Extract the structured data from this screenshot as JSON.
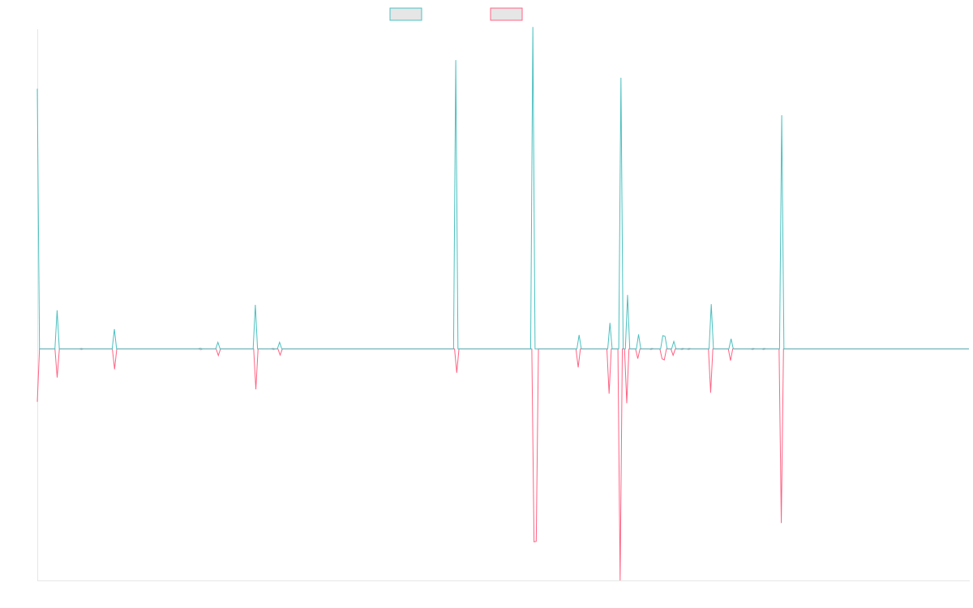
{
  "chart_data": {
    "type": "line",
    "title": "",
    "xlabel": "",
    "ylabel": "",
    "ylim": [
      -105,
      145
    ],
    "grid": false,
    "legend_placement": "top-center",
    "colors": {
      "series_a": "#4bc0c0",
      "series_b": "#ff6384",
      "swatch_fill": "#e6e6e6",
      "axis": "#e6e6e6"
    },
    "series": [
      {
        "values": [
          118,
          0,
          0,
          0,
          0,
          0,
          0,
          0,
          0,
          17.5,
          0,
          0,
          0,
          0,
          0,
          0,
          0,
          0,
          0,
          0,
          0.2,
          0,
          0,
          0,
          0,
          0,
          0,
          0,
          0,
          0,
          0,
          0,
          0,
          0,
          0,
          9,
          0,
          0,
          0,
          0,
          0,
          0,
          0,
          0,
          0,
          0,
          0,
          0,
          0,
          0,
          0,
          0,
          0,
          0,
          0,
          0,
          0,
          0,
          0,
          0,
          0,
          0,
          0,
          0,
          0,
          0,
          0,
          0,
          0,
          0,
          0,
          0,
          0,
          0,
          0.3,
          0,
          0,
          0,
          0,
          0,
          0,
          0,
          3,
          0,
          0,
          0,
          0,
          0,
          0,
          0,
          0,
          0,
          0,
          0,
          0,
          0,
          0,
          0,
          0,
          20,
          0,
          0,
          0,
          0,
          0,
          0,
          0,
          0.2,
          0,
          0,
          3,
          0,
          0,
          0,
          0,
          0,
          0,
          0,
          0,
          0,
          0,
          0,
          0,
          0,
          0,
          0,
          0,
          0,
          0,
          0,
          0,
          0,
          0,
          0,
          0,
          0,
          0,
          0,
          0,
          0,
          0,
          0,
          0,
          0,
          0,
          0,
          0,
          0,
          0,
          0,
          0,
          0,
          0,
          0,
          0,
          0,
          0,
          0,
          0,
          0,
          0,
          0,
          0,
          0,
          0,
          0,
          0,
          0,
          0,
          0,
          0,
          0,
          0,
          0,
          0,
          0,
          0,
          0,
          0,
          0,
          0,
          0,
          0,
          0,
          0,
          0,
          0,
          0,
          0,
          0,
          131,
          0,
          0,
          0,
          0,
          0,
          0,
          0,
          0,
          0,
          0,
          0,
          0,
          0,
          0,
          0,
          0,
          0,
          0,
          0,
          0,
          0,
          0,
          0,
          0,
          0,
          0,
          0,
          0,
          0,
          0,
          0,
          0,
          0,
          0,
          146,
          0,
          0,
          0,
          0,
          0,
          0,
          0,
          0,
          0,
          0,
          0,
          0,
          0,
          0,
          0,
          0,
          0,
          0,
          0,
          0,
          6.3,
          0,
          0,
          0,
          0,
          0,
          0,
          0,
          0,
          0,
          0,
          0,
          0,
          0,
          11.8,
          0,
          0,
          0,
          0,
          123,
          0,
          0,
          24.5,
          0,
          0,
          0,
          0,
          6.6,
          0,
          0,
          0,
          0,
          0,
          0.2,
          0,
          0,
          0,
          0,
          6,
          5.7,
          0,
          0,
          0,
          3.4,
          0,
          0,
          0,
          0.2,
          0,
          0,
          0.2,
          0,
          0,
          0,
          0,
          0,
          0,
          0,
          0,
          0,
          20.3,
          0,
          0,
          0,
          0,
          0,
          0,
          0,
          0,
          4.6,
          0,
          0,
          0,
          0,
          0,
          0,
          0,
          0,
          0,
          0.2,
          0,
          0,
          0,
          0,
          0.2,
          0,
          0,
          0,
          0,
          0,
          0,
          0,
          106,
          0,
          0,
          0,
          0,
          0,
          0,
          0,
          0,
          0,
          0,
          0,
          0,
          0,
          0,
          0,
          0,
          0,
          0,
          0,
          0,
          0,
          0,
          0,
          0,
          0,
          0,
          0,
          0,
          0,
          0,
          0,
          0,
          0,
          0,
          0,
          0,
          0,
          0,
          0,
          0,
          0,
          0,
          0,
          0,
          0,
          0,
          0,
          0,
          0,
          0,
          0,
          0,
          0,
          0,
          0,
          0,
          0,
          0,
          0,
          0,
          0,
          0,
          0,
          0,
          0,
          0,
          0,
          0,
          0,
          0,
          0,
          0,
          0,
          0,
          0,
          0,
          0,
          0,
          0,
          0,
          0,
          0,
          0,
          0,
          0
        ]
      },
      {
        "values": [
          -24,
          0,
          0,
          0,
          0,
          0,
          0,
          0,
          0,
          -13,
          0,
          0,
          0,
          0,
          0,
          0,
          0,
          0,
          0,
          0,
          -0.2,
          0,
          0,
          0,
          0,
          0,
          0,
          0,
          0,
          0,
          0,
          0,
          0,
          0,
          0,
          -9.2,
          0,
          0,
          0,
          0,
          0,
          0,
          0,
          0,
          0,
          0,
          0,
          0,
          0,
          0,
          0,
          0,
          0,
          0,
          0,
          0,
          0,
          0,
          0,
          0,
          0,
          0,
          0,
          0,
          0,
          0,
          0,
          0,
          0,
          0,
          0,
          0,
          0,
          0,
          -0.3,
          0,
          0,
          0,
          0,
          0,
          0,
          0,
          -3,
          0,
          0,
          0,
          0,
          0,
          0,
          0,
          0,
          0,
          0,
          0,
          0,
          0,
          0,
          0,
          0,
          -18.3,
          0,
          0,
          0,
          0,
          0,
          0,
          0,
          -0.2,
          0,
          0,
          -2.8,
          0,
          0,
          0,
          0,
          0,
          0,
          0,
          0,
          0,
          0,
          0,
          0,
          0,
          0,
          0,
          0,
          0,
          0,
          0,
          0,
          0,
          0,
          0,
          0,
          0,
          0,
          0,
          0,
          0,
          0,
          0,
          0,
          0,
          0,
          0,
          0,
          0,
          0,
          0,
          0,
          0,
          0,
          0,
          0,
          0,
          0,
          0,
          0,
          0,
          0,
          0,
          0,
          0,
          0,
          0,
          0,
          0,
          0,
          0,
          0,
          0,
          0,
          0,
          0,
          0,
          0,
          0,
          0,
          0,
          0,
          0,
          0,
          0,
          0,
          0,
          0,
          0,
          0,
          0,
          -10.8,
          0,
          0,
          0,
          0,
          0,
          0,
          0,
          0,
          0,
          0,
          0,
          0,
          0,
          0,
          0,
          0,
          0,
          0,
          0,
          0,
          0,
          0,
          0,
          0,
          0,
          0,
          0,
          0,
          0,
          0,
          0,
          0,
          0,
          0,
          -87.5,
          -87.3,
          0,
          0,
          0,
          0,
          0,
          0,
          0,
          0,
          0,
          0,
          0,
          0,
          0,
          0,
          0,
          0,
          0,
          0,
          -8.4,
          0,
          0,
          0,
          0,
          0,
          0,
          0,
          0,
          0,
          0,
          0,
          0,
          0,
          -20.3,
          0,
          0,
          0,
          0,
          -105,
          0,
          0,
          -24.6,
          0,
          0,
          0,
          0,
          -4.4,
          0,
          0,
          0,
          0,
          0,
          -0.2,
          0,
          0,
          0,
          0,
          -4.5,
          -5,
          0,
          0,
          0,
          -2.9,
          0,
          0,
          0,
          -0.2,
          0,
          0,
          -0.2,
          0,
          0,
          0,
          0,
          0,
          0,
          0,
          0,
          0,
          -19.9,
          0,
          0,
          0,
          0,
          0,
          0,
          0,
          0,
          -5.3,
          0,
          0,
          0,
          0,
          0,
          0,
          0,
          0,
          0,
          -0.2,
          0,
          0,
          0,
          0,
          -0.2,
          0,
          0,
          0,
          0,
          0,
          0,
          0,
          -79,
          0,
          0,
          0,
          0,
          0,
          0,
          0,
          0,
          0,
          0,
          0,
          0,
          0,
          0,
          0,
          0,
          0,
          0,
          0,
          0,
          0,
          0,
          0,
          0,
          0,
          0,
          0,
          0,
          0,
          0,
          0,
          0,
          0,
          0,
          0,
          0,
          0,
          0,
          0,
          0,
          0,
          0,
          0,
          0,
          0,
          0,
          0,
          0,
          0,
          0,
          0,
          0,
          0,
          0,
          0,
          0,
          0,
          0,
          0,
          0,
          0,
          0,
          0,
          0,
          0,
          0,
          0,
          0,
          0,
          0,
          0,
          0,
          0,
          0,
          0,
          0,
          0,
          0,
          0,
          0,
          0,
          0,
          0,
          0,
          0
        ]
      }
    ]
  }
}
